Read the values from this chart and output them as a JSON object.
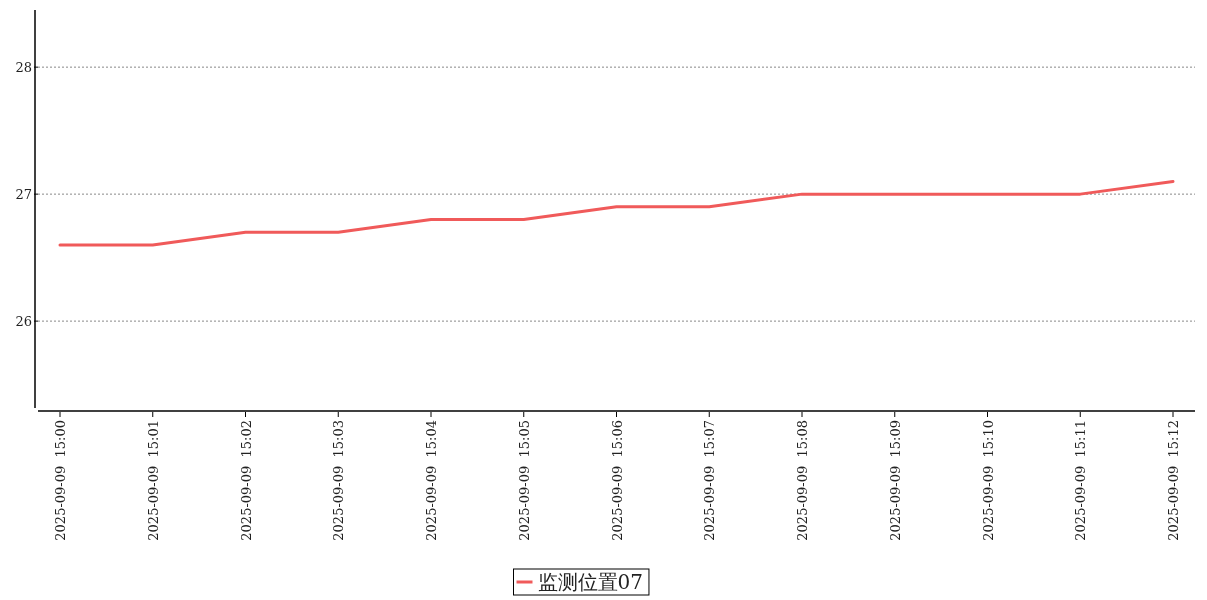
{
  "chart_data": {
    "type": "line",
    "categories": [
      "2025-09-09  15:00",
      "2025-09-09  15:01",
      "2025-09-09  15:02",
      "2025-09-09  15:03",
      "2025-09-09  15:04",
      "2025-09-09  15:05",
      "2025-09-09  15:06",
      "2025-09-09  15:07",
      "2025-09-09  15:08",
      "2025-09-09  15:09",
      "2025-09-09  15:10",
      "2025-09-09  15:11",
      "2025-09-09  15:12"
    ],
    "series": [
      {
        "name": "监测位置07",
        "color": "#f05a5a",
        "values": [
          26.6,
          26.6,
          26.7,
          26.7,
          26.8,
          26.8,
          26.9,
          26.9,
          27.0,
          27.0,
          27.0,
          27.0,
          27.1
        ]
      }
    ],
    "ylim": [
      25.3,
      28.45
    ],
    "yticks": [
      26,
      27,
      28
    ],
    "grid": "y",
    "legend": "bottom"
  }
}
